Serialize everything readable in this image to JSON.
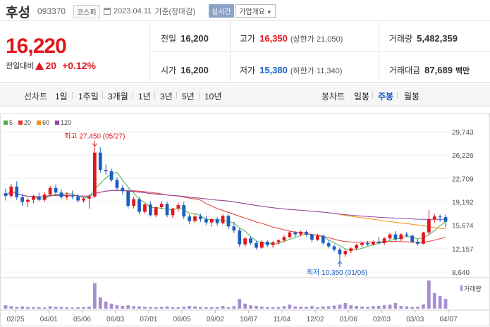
{
  "header": {
    "name": "후성",
    "code": "093370",
    "market": "코스피",
    "date": "2023.04.11",
    "basis": "기준(장마감)",
    "live_label": "실시간",
    "company_button": "기업개요"
  },
  "price": {
    "current": "16,220",
    "change_label": "전일대비",
    "change": "20",
    "change_pct": "+0.12%"
  },
  "stats": {
    "prev_label": "전일",
    "prev": "16,200",
    "open_label": "시가",
    "open": "16,200",
    "high_label": "고가",
    "high": "16,350",
    "upper_limit": "(상한가 21,050)",
    "low_label": "저가",
    "low": "15,380",
    "lower_limit": "(하한가 11,340)",
    "volume_label": "거래량",
    "volume": "5,482,359",
    "amount_label": "거래대금",
    "amount": "87,689",
    "amount_unit": "백만"
  },
  "periods": {
    "line_label": "선차트",
    "line_items": [
      "1일",
      "1주일",
      "3개월",
      "1년",
      "3년",
      "5년",
      "10년"
    ],
    "candle_label": "봉차트",
    "candle_items": [
      "일봉",
      "주봉",
      "월봉"
    ],
    "active_candle": "주봉"
  },
  "colors": {
    "up": "#e0171d",
    "down": "#1a5ec4",
    "ma5": "#4caf50",
    "ma20": "#e53935",
    "ma60": "#fb8c00",
    "ma120": "#8e44ad",
    "volume": "#a58fcf"
  },
  "chart_data": {
    "type": "candlestick",
    "legend": [
      {
        "name": "5",
        "color": "#4caf50"
      },
      {
        "name": "20",
        "color": "#e53935"
      },
      {
        "name": "60",
        "color": "#fb8c00"
      },
      {
        "name": "120",
        "color": "#8e44ad"
      }
    ],
    "y_ticks": [
      "29,743",
      "26,226",
      "22,709",
      "19,192",
      "15,674",
      "12,157",
      "8,640"
    ],
    "ylim": [
      8640,
      29743
    ],
    "x_labels": [
      "02/25",
      "04/01",
      "05/06",
      "06/03",
      "07/01",
      "08/05",
      "09/02",
      "10/07",
      "11/04",
      "12/02",
      "01/06",
      "02/03",
      "03/03",
      "04/07"
    ],
    "high_annotation": "최고 27,450 (05/27)",
    "low_annotation": "최저 10,350 (01/06)",
    "volume_label": "거래량",
    "candles": [
      [
        20500,
        21200,
        19400,
        20100
      ],
      [
        20100,
        21900,
        19800,
        21500
      ],
      [
        21500,
        22300,
        19500,
        19900
      ],
      [
        19900,
        20400,
        18600,
        19200
      ],
      [
        19200,
        19800,
        18400,
        19500
      ],
      [
        19500,
        20300,
        19000,
        20000
      ],
      [
        20000,
        20600,
        19300,
        19500
      ],
      [
        19500,
        20600,
        19200,
        20300
      ],
      [
        20300,
        21600,
        20000,
        21300
      ],
      [
        21300,
        21800,
        20300,
        20600
      ],
      [
        20600,
        21100,
        19600,
        19900
      ],
      [
        19900,
        20700,
        19500,
        20200
      ],
      [
        20200,
        20900,
        19600,
        20000
      ],
      [
        20000,
        20400,
        19100,
        19400
      ],
      [
        19400,
        19900,
        19100,
        19700
      ],
      [
        19700,
        20300,
        18200,
        20000
      ],
      [
        20000,
        27450,
        19800,
        26600
      ],
      [
        26600,
        27450,
        23600,
        24000
      ],
      [
        24000,
        24800,
        23300,
        23800
      ],
      [
        23800,
        24200,
        22200,
        22500
      ],
      [
        22500,
        22900,
        20900,
        21300
      ],
      [
        21300,
        21700,
        20300,
        20800
      ],
      [
        20800,
        21200,
        18200,
        18600
      ],
      [
        18600,
        20000,
        18200,
        19600
      ],
      [
        19600,
        19900,
        17300,
        17700
      ],
      [
        17700,
        19000,
        17400,
        18800
      ],
      [
        18800,
        19300,
        17000,
        17200
      ],
      [
        17200,
        18500,
        16900,
        18400
      ],
      [
        18400,
        19300,
        18100,
        18900
      ],
      [
        18900,
        19200,
        16900,
        17200
      ],
      [
        17200,
        18300,
        16800,
        18200
      ],
      [
        18200,
        19100,
        17700,
        18700
      ],
      [
        18700,
        19200,
        16600,
        17000
      ],
      [
        17000,
        17300,
        15900,
        16300
      ],
      [
        16300,
        17400,
        16000,
        17000
      ],
      [
        17000,
        17400,
        16200,
        16600
      ],
      [
        16600,
        17100,
        15700,
        16100
      ],
      [
        16100,
        16800,
        15500,
        16600
      ],
      [
        16600,
        16900,
        15600,
        16000
      ],
      [
        16000,
        17300,
        15800,
        17100
      ],
      [
        17100,
        17300,
        15100,
        15500
      ],
      [
        15500,
        16200,
        14500,
        14900
      ],
      [
        14900,
        15200,
        12400,
        12800
      ],
      [
        12800,
        13900,
        12400,
        13700
      ],
      [
        13700,
        14000,
        12700,
        13000
      ],
      [
        13000,
        13300,
        12000,
        12300
      ],
      [
        12300,
        13400,
        12100,
        13200
      ],
      [
        13200,
        13400,
        12400,
        12700
      ],
      [
        12700,
        13300,
        12300,
        13100
      ],
      [
        13100,
        13600,
        12800,
        13400
      ],
      [
        13400,
        14200,
        13100,
        13900
      ],
      [
        13900,
        14800,
        13700,
        14600
      ],
      [
        14600,
        14800,
        13900,
        14300
      ],
      [
        14300,
        14900,
        14000,
        14700
      ],
      [
        14700,
        14900,
        14000,
        14300
      ],
      [
        14300,
        14400,
        13100,
        13500
      ],
      [
        13500,
        14400,
        13300,
        14100
      ],
      [
        14100,
        14300,
        12700,
        13000
      ],
      [
        13000,
        13400,
        12200,
        12500
      ],
      [
        12500,
        12800,
        11700,
        12000
      ],
      [
        12000,
        12300,
        10350,
        11300
      ],
      [
        11300,
        12100,
        10900,
        11800
      ],
      [
        11800,
        12400,
        11500,
        12200
      ],
      [
        12200,
        12900,
        11900,
        12700
      ],
      [
        12700,
        13200,
        12400,
        13000
      ],
      [
        13000,
        13300,
        12600,
        12800
      ],
      [
        12800,
        13400,
        12600,
        13200
      ],
      [
        13200,
        13900,
        12900,
        13000
      ],
      [
        13000,
        13900,
        12700,
        13700
      ],
      [
        13700,
        14500,
        13500,
        14300
      ],
      [
        14300,
        14800,
        13200,
        13600
      ],
      [
        13600,
        14500,
        13300,
        14300
      ],
      [
        14300,
        14700,
        13900,
        14100
      ],
      [
        14100,
        14300,
        13000,
        13200
      ],
      [
        13200,
        13600,
        12600,
        12900
      ],
      [
        12900,
        14700,
        12800,
        14600
      ],
      [
        14600,
        18000,
        14200,
        16600
      ],
      [
        16600,
        17400,
        16100,
        17000
      ],
      [
        17000,
        17300,
        16200,
        16900
      ],
      [
        16900,
        17300,
        15380,
        16220
      ]
    ],
    "volumes": [
      12,
      9,
      6,
      8,
      6,
      5,
      6,
      4,
      9,
      7,
      6,
      5,
      4,
      5,
      6,
      7,
      90,
      40,
      25,
      18,
      12,
      10,
      12,
      9,
      8,
      7,
      6,
      5,
      6,
      8,
      5,
      5,
      7,
      10,
      8,
      6,
      5,
      5,
      6,
      10,
      5,
      9,
      35,
      18,
      12,
      10,
      7,
      6,
      5,
      6,
      9,
      14,
      8,
      7,
      6,
      9,
      5,
      8,
      9,
      11,
      14,
      20,
      12,
      10,
      8,
      6,
      9,
      10,
      12,
      14,
      20,
      10,
      8,
      6,
      7,
      15,
      100,
      55,
      45,
      35
    ]
  }
}
